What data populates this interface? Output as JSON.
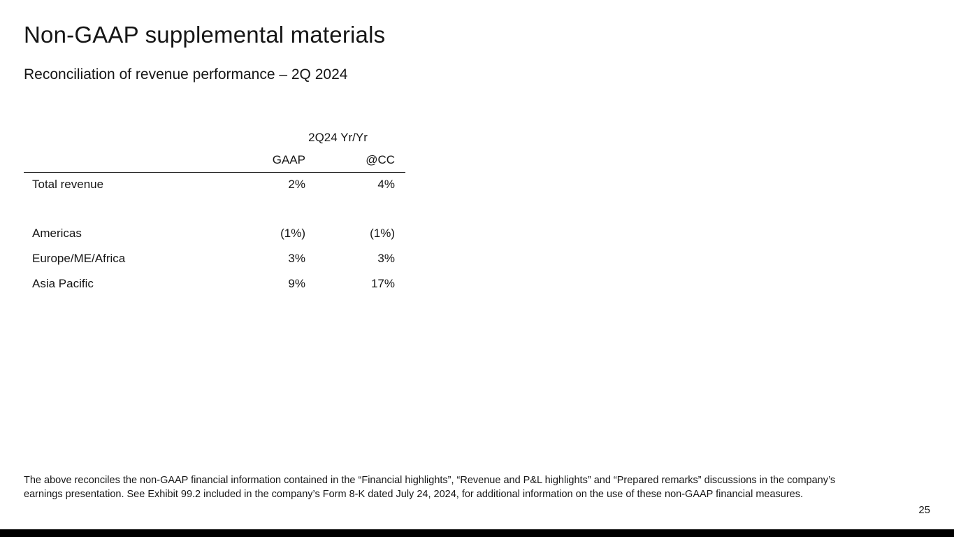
{
  "slide": {
    "title": "Non-GAAP supplemental materials",
    "subtitle": "Reconciliation of revenue performance – 2Q 2024",
    "page_number": "25"
  },
  "table": {
    "group_header": "2Q24 Yr/Yr",
    "columns": [
      "GAAP",
      "@CC"
    ],
    "rows": [
      {
        "label": "Total revenue",
        "gaap": "2%",
        "cc": "4%"
      },
      {
        "label": "Americas",
        "gaap": "(1%)",
        "cc": "(1%)"
      },
      {
        "label": "Europe/ME/Africa",
        "gaap": "3%",
        "cc": "3%"
      },
      {
        "label": "Asia Pacific",
        "gaap": "9%",
        "cc": "17%"
      }
    ]
  },
  "footnote": {
    "text": "The above reconciles the non-GAAP financial information contained in the “Financial highlights”, “Revenue and P&L highlights” and “Prepared remarks” discussions in the company’s earnings presentation. See Exhibit 99.2 included in the company’s Form 8-K dated July 24, 2024, for additional information on the use of these non-GAAP financial measures."
  }
}
